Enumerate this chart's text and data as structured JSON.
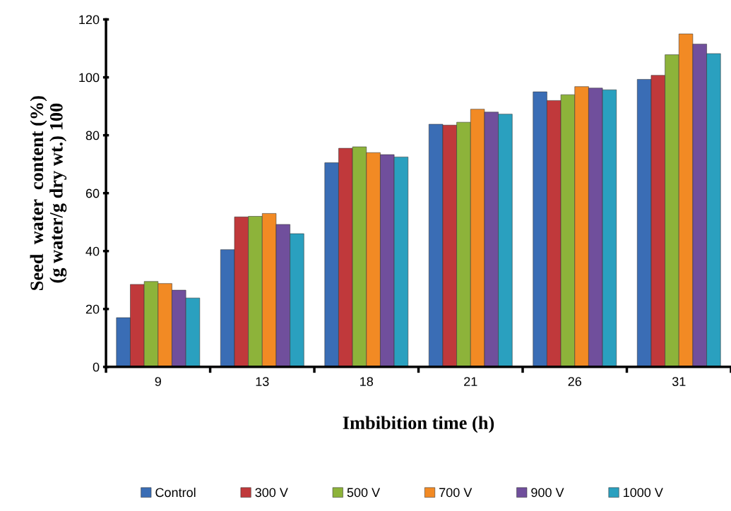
{
  "chart_data": {
    "type": "bar",
    "xlabel": "Imbibition time (h)",
    "ylabel": "Seed  water  content (%)\n(g water/g dry wt.) 100",
    "categories": [
      "9",
      "13",
      "18",
      "21",
      "26",
      "31"
    ],
    "series": [
      {
        "name": "Control",
        "color": "#3a6db5",
        "values": [
          17,
          40.5,
          70.5,
          83.8,
          95,
          99.3
        ]
      },
      {
        "name": "300 V",
        "color": "#c0393b",
        "values": [
          28.5,
          51.8,
          75.5,
          83.5,
          92,
          100.7
        ]
      },
      {
        "name": "500 V",
        "color": "#8db33a",
        "values": [
          29.5,
          52,
          76,
          84.5,
          94,
          107.8
        ]
      },
      {
        "name": "700 V",
        "color": "#f28a24",
        "values": [
          28.8,
          53,
          74,
          89,
          96.8,
          115
        ]
      },
      {
        "name": "900 V",
        "color": "#704f9c",
        "values": [
          26.5,
          49.2,
          73.3,
          88,
          96.3,
          111.5
        ]
      },
      {
        "name": "1000 V",
        "color": "#2aa0bf",
        "values": [
          23.8,
          46,
          72.5,
          87.3,
          95.7,
          108.2
        ]
      }
    ],
    "ylim": [
      0,
      120
    ],
    "yticks": [
      0,
      20,
      40,
      60,
      80,
      100,
      120
    ],
    "grid": false,
    "legend": "bottom"
  }
}
